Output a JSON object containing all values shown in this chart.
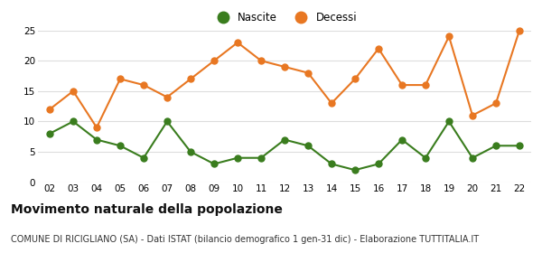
{
  "years": [
    2,
    3,
    4,
    5,
    6,
    7,
    8,
    9,
    10,
    11,
    12,
    13,
    14,
    15,
    16,
    17,
    18,
    19,
    20,
    21,
    22
  ],
  "nascite": [
    8,
    10,
    7,
    6,
    4,
    10,
    5,
    3,
    4,
    4,
    7,
    6,
    3,
    2,
    3,
    7,
    4,
    10,
    4,
    6,
    6
  ],
  "decessi": [
    12,
    15,
    9,
    17,
    16,
    14,
    17,
    20,
    23,
    20,
    19,
    18,
    13,
    17,
    22,
    16,
    16,
    24,
    11,
    13,
    25
  ],
  "nascite_color": "#3a7d1e",
  "decessi_color": "#e87722",
  "plot_bg_color": "#ffffff",
  "fig_bg_color": "#ffffff",
  "title": "Movimento naturale della popolazione",
  "subtitle": "COMUNE DI RICIGLIANO (SA) - Dati ISTAT (bilancio demografico 1 gen-31 dic) - Elaborazione TUTTITALIA.IT",
  "legend_nascite": "Nascite",
  "legend_decessi": "Decessi",
  "ylim": [
    0,
    25
  ],
  "yticks": [
    0,
    5,
    10,
    15,
    20,
    25
  ],
  "title_fontsize": 10,
  "subtitle_fontsize": 7,
  "tick_fontsize": 7.5,
  "marker_size": 5,
  "linewidth": 1.5
}
